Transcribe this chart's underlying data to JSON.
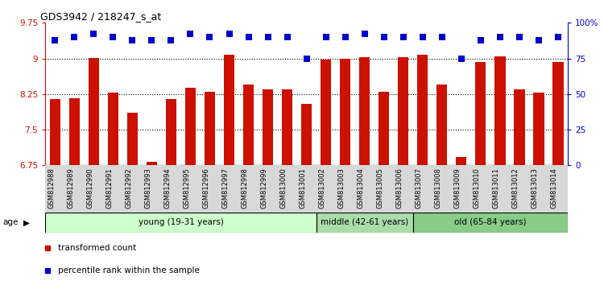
{
  "title": "GDS3942 / 218247_s_at",
  "samples": [
    "GSM812988",
    "GSM812989",
    "GSM812990",
    "GSM812991",
    "GSM812992",
    "GSM812993",
    "GSM812994",
    "GSM812995",
    "GSM812996",
    "GSM812997",
    "GSM812998",
    "GSM812999",
    "GSM813000",
    "GSM813001",
    "GSM813002",
    "GSM813003",
    "GSM813004",
    "GSM813005",
    "GSM813006",
    "GSM813007",
    "GSM813008",
    "GSM813009",
    "GSM813010",
    "GSM813011",
    "GSM813012",
    "GSM813013",
    "GSM813014"
  ],
  "bar_values": [
    8.15,
    8.17,
    9.01,
    8.28,
    7.85,
    6.82,
    8.15,
    8.38,
    8.3,
    9.08,
    8.45,
    8.35,
    8.35,
    8.05,
    8.98,
    8.99,
    9.02,
    8.29,
    9.02,
    9.07,
    8.45,
    6.93,
    8.93,
    9.05,
    8.35,
    8.28,
    8.92
  ],
  "percentile_values": [
    88,
    90,
    92,
    90,
    88,
    88,
    88,
    92,
    90,
    92,
    90,
    90,
    90,
    75,
    90,
    90,
    92,
    90,
    90,
    90,
    90,
    75,
    88,
    90,
    90,
    88,
    90
  ],
  "bar_color": "#cc1100",
  "percentile_color": "#0000cc",
  "ylim_left": [
    6.75,
    9.75
  ],
  "ylim_right": [
    0,
    100
  ],
  "yticks_left": [
    6.75,
    7.5,
    8.25,
    9.0,
    9.75
  ],
  "ytick_labels_left": [
    "6.75",
    "7.5",
    "8.25",
    "9",
    "9.75"
  ],
  "yticks_right": [
    0,
    25,
    50,
    75,
    100
  ],
  "ytick_labels_right": [
    "0",
    "25",
    "50",
    "75",
    "100%"
  ],
  "group_labels": [
    "young (19-31 years)",
    "middle (42-61 years)",
    "old (65-84 years)"
  ],
  "group_colors": [
    "#ccffcc",
    "#aaddaa",
    "#88cc88"
  ],
  "group_ranges": [
    [
      0,
      14
    ],
    [
      14,
      19
    ],
    [
      19,
      27
    ]
  ],
  "legend_items": [
    {
      "label": "transformed count",
      "color": "#cc1100"
    },
    {
      "label": "percentile rank within the sample",
      "color": "#0000cc"
    }
  ],
  "bar_width": 0.55
}
